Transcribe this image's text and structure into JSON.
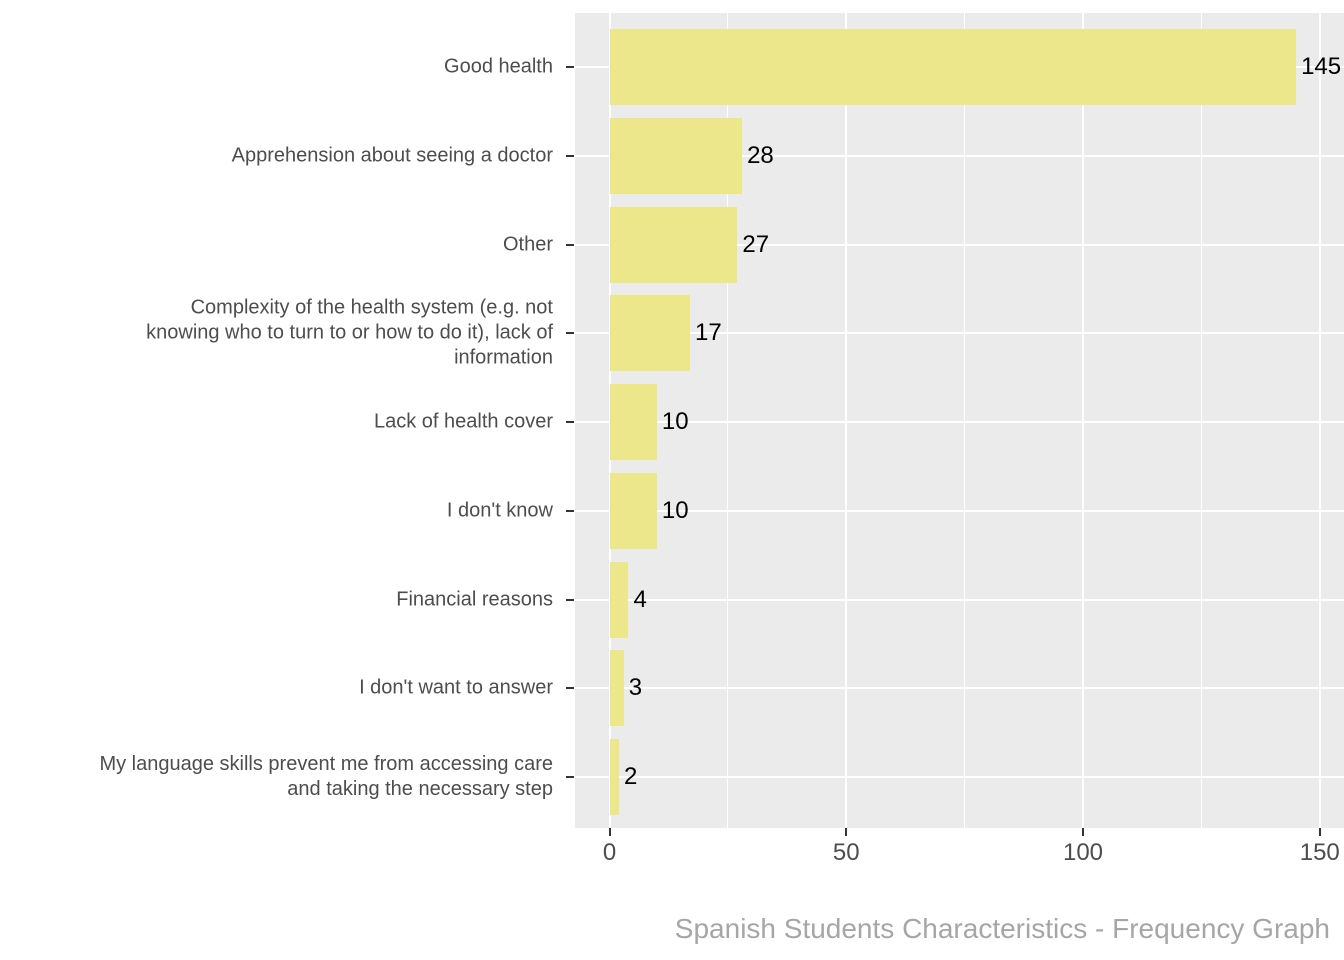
{
  "title": "Spanish Students Characteristics - Frequency Graph",
  "colors": {
    "bar_fill": "#EDE78C",
    "panel_background": "#EBEBEB",
    "gridline": "#FFFFFF",
    "axis_text": "#4D4D4D",
    "value_label": "#000000",
    "tick_mark": "#333333",
    "title_text": "#A6A6A6",
    "page_background": "#FFFFFF"
  },
  "chart_data": {
    "type": "bar",
    "orientation": "horizontal",
    "title": "Spanish Students Characteristics - Frequency Graph",
    "xlabel": "",
    "ylabel": "",
    "categories": [
      "Good health",
      "Apprehension about seeing a doctor",
      "Other",
      "Complexity of the health system (e.g. not\nknowing who to turn to or how to do it), lack of\ninformation",
      "Lack of health cover",
      "I don't know",
      "Financial reasons",
      "I don't want to answer",
      "My language skills prevent me from accessing care\nand taking the necessary step"
    ],
    "values": [
      145,
      28,
      27,
      17,
      10,
      10,
      4,
      3,
      2
    ],
    "value_labels": [
      "145",
      "28",
      "27",
      "17",
      "10",
      "10",
      "4",
      "3",
      "2"
    ],
    "xlim": [
      0,
      150
    ],
    "x_major_ticks": [
      0,
      50,
      100,
      150
    ],
    "x_tick_labels": [
      "0",
      "50",
      "100",
      "150"
    ],
    "x_minor_gridlines": [
      25,
      75,
      125
    ],
    "grid": true,
    "legend": false,
    "title_position": "bottom-right"
  }
}
